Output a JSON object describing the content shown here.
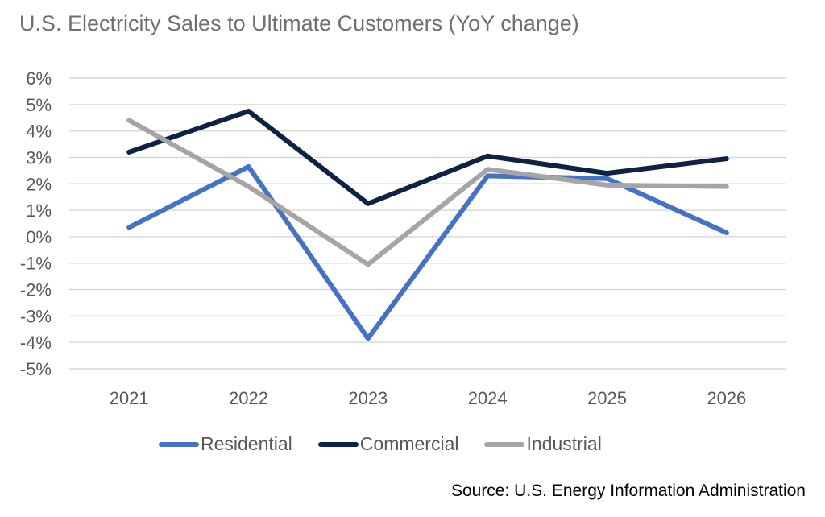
{
  "chart_data": {
    "type": "line",
    "title": "U.S. Electricity Sales to Ultimate Customers (YoY change)",
    "xlabel": "",
    "ylabel": "",
    "categories": [
      "2021",
      "2022",
      "2023",
      "2024",
      "2025",
      "2026"
    ],
    "ylim": [
      -5,
      6
    ],
    "yticks": [
      6,
      5,
      4,
      3,
      2,
      1,
      0,
      -1,
      -2,
      -3,
      -4,
      -5
    ],
    "ytick_labels": [
      "6%",
      "5%",
      "4%",
      "3%",
      "2%",
      "1%",
      "0%",
      "-1%",
      "-2%",
      "-3%",
      "-4%",
      "-5%"
    ],
    "grid": true,
    "legend_position": "bottom",
    "series": [
      {
        "name": "Residential",
        "color": "#4472c4",
        "values": [
          0.35,
          2.65,
          -3.85,
          2.3,
          2.2,
          0.15
        ]
      },
      {
        "name": "Commercial",
        "color": "#0d2244",
        "values": [
          3.2,
          4.75,
          1.25,
          3.05,
          2.4,
          2.95
        ]
      },
      {
        "name": "Industrial",
        "color": "#a5a5a5",
        "values": [
          4.4,
          1.9,
          -1.05,
          2.55,
          1.95,
          1.9
        ]
      }
    ],
    "source": "Source: U.S. Energy Information Administration"
  },
  "colors": {
    "grid": "#d9d9d9",
    "title": "#6f6f6f",
    "axis_text": "#595959"
  }
}
